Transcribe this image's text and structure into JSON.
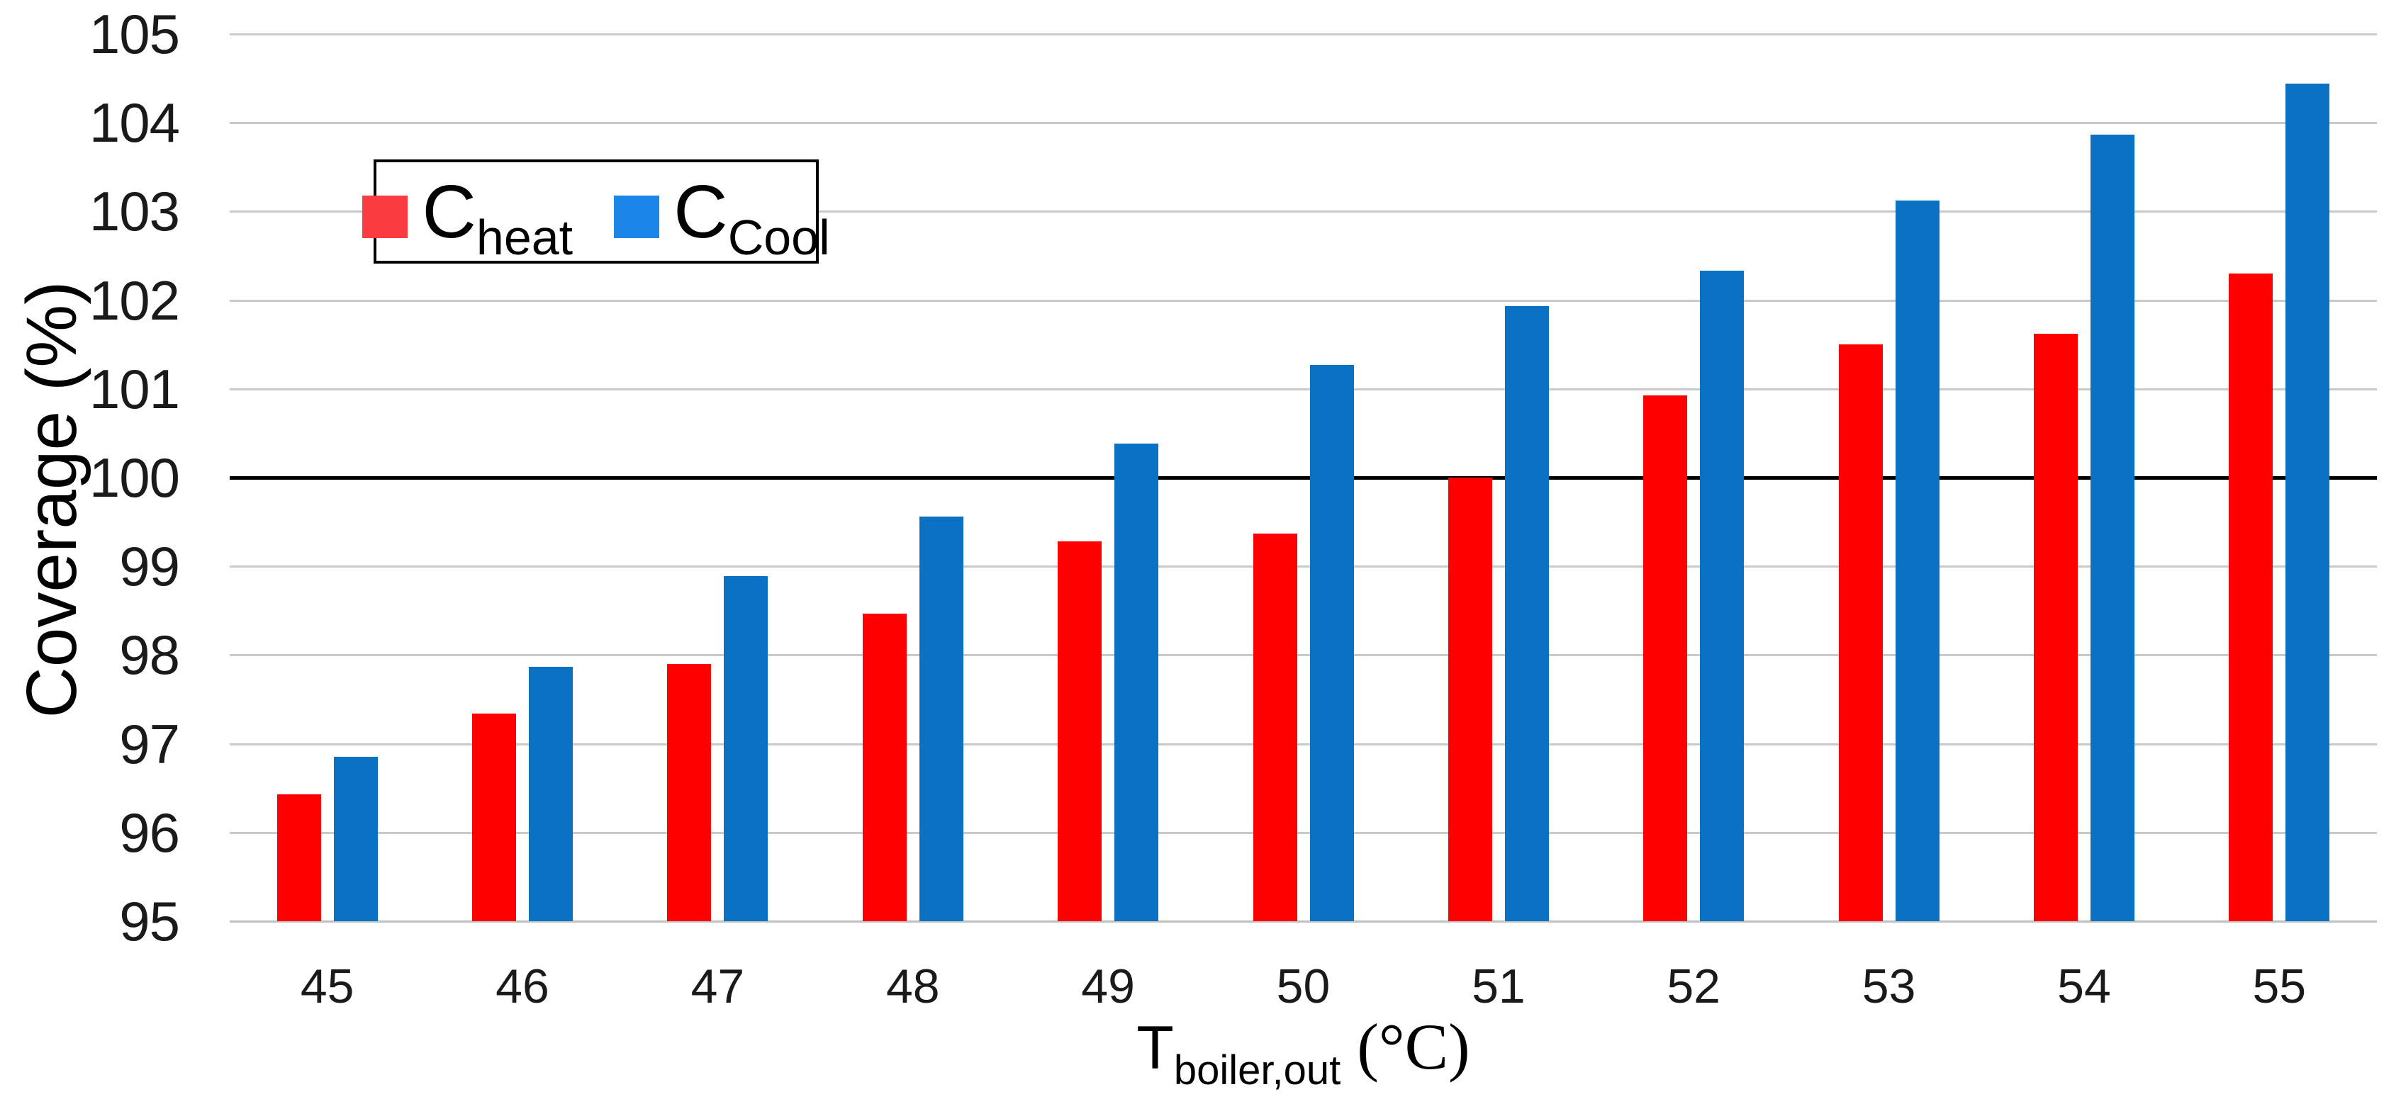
{
  "chart_data": {
    "type": "bar",
    "title": "",
    "categories": [
      "45",
      "46",
      "47",
      "48",
      "49",
      "50",
      "51",
      "52",
      "53",
      "54",
      "55"
    ],
    "series": [
      {
        "name_prefix": "C",
        "name_subscript": "heat",
        "bar_color": "#FE0000",
        "legend_color": "#FA3B40",
        "values": [
          96.43,
          97.34,
          97.9,
          98.47,
          99.28,
          99.37,
          100.0,
          100.93,
          101.5,
          101.62,
          102.3
        ]
      },
      {
        "name_prefix": "C",
        "name_subscript": "Cool",
        "bar_color": "#0B72C3",
        "legend_color": "#1C86E8",
        "values": [
          96.85,
          97.87,
          98.89,
          99.56,
          100.38,
          101.27,
          101.93,
          102.33,
          103.12,
          103.87,
          104.44
        ]
      }
    ],
    "xlabel": {
      "prefix": "T",
      "subscript": "boiler,out",
      "unit": " (°C)"
    },
    "ylabel": "Coverage (%)",
    "ylim": [
      95,
      105
    ],
    "yticks": [
      95,
      96,
      97,
      98,
      99,
      100,
      101,
      102,
      103,
      104,
      105
    ],
    "reference_line": {
      "value": 100,
      "color": "#000000"
    },
    "gridline_color": "#C9C9C9",
    "grid": "horizontal",
    "legend_position": "top-left-inside"
  }
}
